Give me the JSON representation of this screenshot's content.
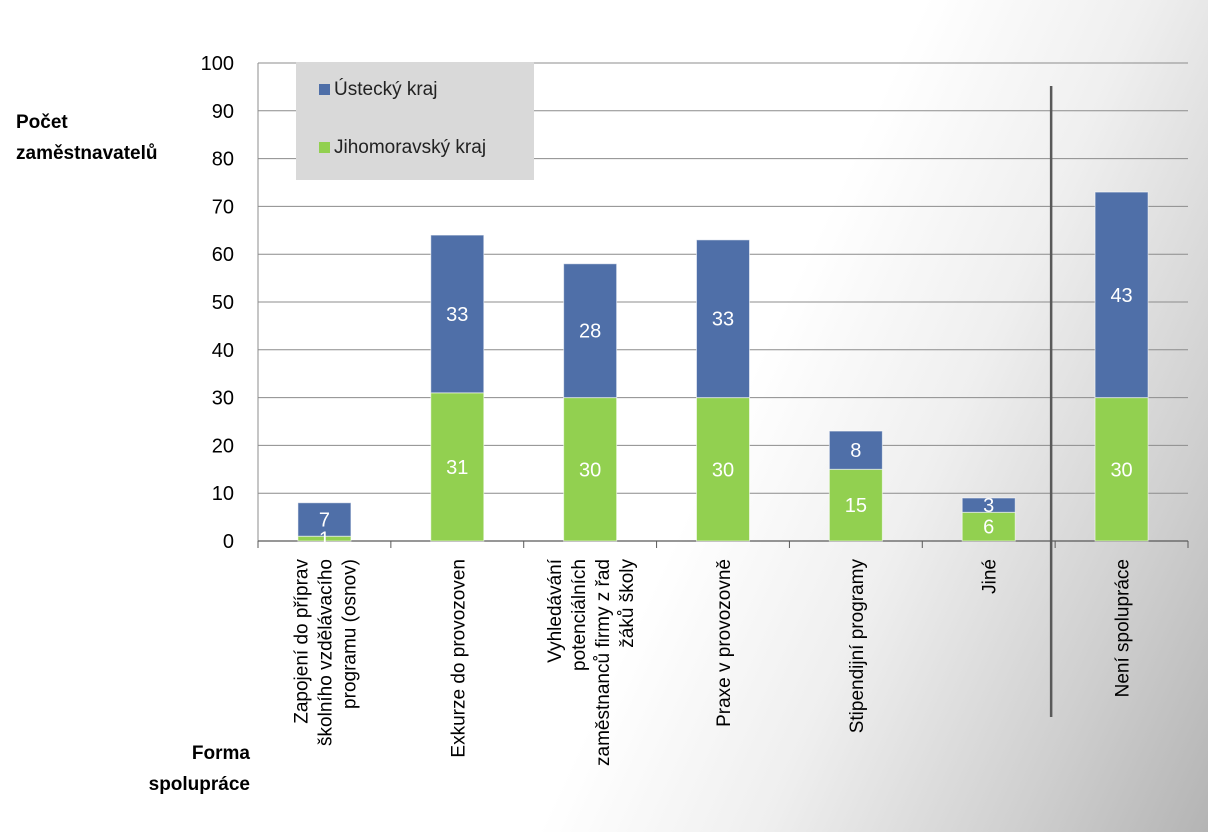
{
  "chart_data": {
    "type": "bar",
    "stacked": true,
    "categories": [
      [
        "Zapojení do příprav",
        "školního vzdělávacího",
        "programu (osnov)"
      ],
      [
        "Exkurze do provozoven"
      ],
      [
        "Vyhledávání",
        "potenciálních",
        "zaměstnanců firmy z řad",
        "žáků školy"
      ],
      [
        "Praxe v provozovně"
      ],
      [
        "Stipendijní programy"
      ],
      [
        "Jiné"
      ],
      [
        "Není spolupráce"
      ]
    ],
    "series": [
      {
        "name": "Jihomoravský kraj",
        "color": "#92d050",
        "values": [
          1,
          31,
          30,
          30,
          15,
          6,
          30
        ]
      },
      {
        "name": "Ústecký kraj",
        "color": "#4f6fa8",
        "values": [
          7,
          33,
          28,
          33,
          8,
          3,
          43
        ]
      }
    ],
    "legend_order": [
      1,
      0
    ],
    "ylabel": [
      "Počet",
      "zaměstnavatelů"
    ],
    "xlabel": [
      "Forma",
      "spolupráce"
    ],
    "ylim": [
      0,
      100
    ],
    "yticks": [
      0,
      10,
      20,
      30,
      40,
      50,
      60,
      70,
      80,
      90,
      100
    ],
    "grid": true,
    "legend_position": "top-left",
    "separator_after_category": 5
  }
}
